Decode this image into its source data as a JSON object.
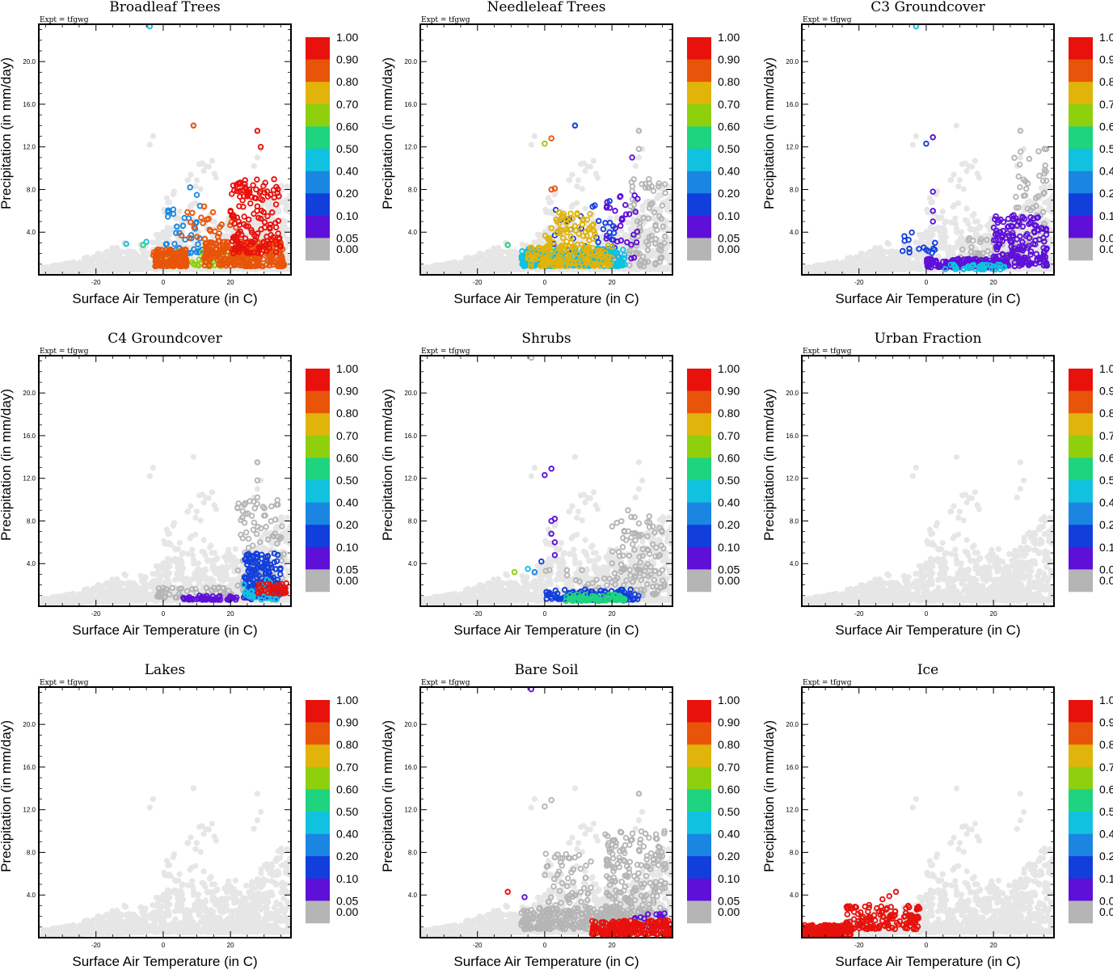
{
  "figure": {
    "expt_label": "Expt = tfgwg",
    "xlabel": "Surface Air Temperature (in C)",
    "ylabel": "Precipitation (in mm/day)",
    "xlim": [
      -37,
      38
    ],
    "ylim": [
      0,
      23.5
    ],
    "xticks": [
      "-20",
      "0",
      "20"
    ],
    "yticks": [
      "4.0",
      "8.0",
      "12.0",
      "16.0",
      "20.0"
    ],
    "colorbar": {
      "labels": [
        "1.00",
        "0.90",
        "0.80",
        "0.70",
        "0.60",
        "0.50",
        "0.40",
        "0.20",
        "0.10",
        "0.05",
        "0.00"
      ],
      "colors": [
        "#e8110c",
        "#e8540a",
        "#e0b40a",
        "#8fd00e",
        "#1ed47e",
        "#10c2e0",
        "#1a86e2",
        "#123fdc",
        "#5e10d8",
        "#b5b5b5"
      ]
    },
    "background_color": "#e6e6e6"
  },
  "chart_data": [
    {
      "type": "scatter",
      "title": "Broadleaf Trees",
      "xlabel": "Surface Air Temperature (in C)",
      "ylabel": "Precipitation (in mm/day)",
      "xlim": [
        -37,
        38
      ],
      "ylim": [
        0,
        23.5
      ],
      "clusters": [
        {
          "x": [
            -3,
            7
          ],
          "y": [
            0.8,
            2.4
          ],
          "n": 140,
          "value": 0.85
        },
        {
          "x": [
            12,
            36
          ],
          "y": [
            0.8,
            3.2
          ],
          "n": 260,
          "value": 0.85
        },
        {
          "x": [
            20,
            35
          ],
          "y": [
            2.0,
            9.0
          ],
          "n": 150,
          "value": 0.95
        },
        {
          "x": [
            -2,
            26
          ],
          "y": [
            0.8,
            2.2
          ],
          "n": 90,
          "value": 0.65
        },
        {
          "x": [
            0,
            12
          ],
          "y": [
            2.0,
            6.5
          ],
          "n": 35,
          "value": 0.2
        },
        {
          "x": [
            5,
            22
          ],
          "y": [
            3.0,
            6.5
          ],
          "n": 30,
          "value": 0.82
        }
      ],
      "points": [
        [
          -4,
          23.3,
          0.5
        ],
        [
          9,
          14.0,
          0.85
        ],
        [
          28,
          13.5,
          0.95
        ],
        [
          29,
          12.0,
          0.95
        ],
        [
          -11,
          2.9,
          0.4
        ],
        [
          -5,
          3.1,
          0.5
        ],
        [
          -6,
          2.8,
          0.6
        ],
        [
          8,
          8.2,
          0.2
        ],
        [
          10,
          7.5,
          0.2
        ]
      ]
    },
    {
      "type": "scatter",
      "title": "Needleleaf Trees",
      "xlabel": "Surface Air Temperature (in C)",
      "ylabel": "Precipitation (in mm/day)",
      "xlim": [
        -37,
        38
      ],
      "ylim": [
        0,
        23.5
      ],
      "clusters": [
        {
          "x": [
            -7,
            24
          ],
          "y": [
            0.8,
            2.5
          ],
          "n": 260,
          "value": 0.45
        },
        {
          "x": [
            -5,
            20
          ],
          "y": [
            0.8,
            2.8
          ],
          "n": 130,
          "value": 0.72
        },
        {
          "x": [
            0,
            15
          ],
          "y": [
            2.5,
            6.0
          ],
          "n": 70,
          "value": 0.78
        },
        {
          "x": [
            2,
            22
          ],
          "y": [
            2.0,
            7.0
          ],
          "n": 40,
          "value": 0.15
        },
        {
          "x": [
            18,
            28
          ],
          "y": [
            1.5,
            8.0
          ],
          "n": 35,
          "value": 0.05
        },
        {
          "x": [
            25,
            36
          ],
          "y": [
            0.8,
            9.0
          ],
          "n": 80,
          "value": 0
        }
      ],
      "points": [
        [
          0,
          12.3,
          0.7
        ],
        [
          2,
          12.8,
          0.85
        ],
        [
          9,
          14.0,
          0.15
        ],
        [
          28,
          13.5,
          0
        ],
        [
          28,
          11.8,
          0
        ],
        [
          26,
          11.0,
          0.05
        ],
        [
          -11,
          2.8,
          0.55
        ],
        [
          2,
          8.0,
          0.85
        ],
        [
          3,
          8.1,
          0.85
        ]
      ]
    },
    {
      "type": "scatter",
      "title": "C3 Groundcover",
      "xlabel": "Surface Air Temperature (in C)",
      "ylabel": "Precipitation (in mm/day)",
      "xlim": [
        -37,
        38
      ],
      "ylim": [
        0,
        23.5
      ],
      "clusters": [
        {
          "x": [
            0,
            24
          ],
          "y": [
            0.7,
            1.5
          ],
          "n": 150,
          "value": 0.05
        },
        {
          "x": [
            5,
            24
          ],
          "y": [
            0.5,
            1.0
          ],
          "n": 40,
          "value": 0.42
        },
        {
          "x": [
            20,
            36
          ],
          "y": [
            0.8,
            5.5
          ],
          "n": 180,
          "value": 0.05
        },
        {
          "x": [
            10,
            28
          ],
          "y": [
            0.8,
            3.5
          ],
          "n": 60,
          "value": 0
        },
        {
          "x": [
            25,
            36
          ],
          "y": [
            2.0,
            12.0
          ],
          "n": 60,
          "value": 0
        },
        {
          "x": [
            -8,
            3
          ],
          "y": [
            2.0,
            4.0
          ],
          "n": 15,
          "value": 0.12
        }
      ],
      "points": [
        [
          -3,
          23.3,
          0.45
        ],
        [
          0,
          12.3,
          0.1
        ],
        [
          2,
          12.9,
          0.05
        ],
        [
          28,
          13.5,
          0
        ],
        [
          2,
          7.8,
          0.05
        ],
        [
          2,
          6.0,
          0.05
        ],
        [
          2,
          5.0,
          0.05
        ],
        [
          26,
          5.6,
          0.05
        ]
      ]
    },
    {
      "type": "scatter",
      "title": "C4 Groundcover",
      "xlabel": "Surface Air Temperature (in C)",
      "ylabel": "Precipitation (in mm/day)",
      "xlim": [
        -37,
        38
      ],
      "ylim": [
        0,
        23.5
      ],
      "clusters": [
        {
          "x": [
            -2,
            22
          ],
          "y": [
            0.8,
            1.8
          ],
          "n": 60,
          "value": 0
        },
        {
          "x": [
            22,
            36
          ],
          "y": [
            1.5,
            10.0
          ],
          "n": 100,
          "value": 0
        },
        {
          "x": [
            24,
            35
          ],
          "y": [
            0.8,
            5.0
          ],
          "n": 160,
          "value": 0.1
        },
        {
          "x": [
            6,
            28
          ],
          "y": [
            0.6,
            1.0
          ],
          "n": 60,
          "value": 0.05
        },
        {
          "x": [
            28,
            37
          ],
          "y": [
            1.2,
            2.2
          ],
          "n": 40,
          "value": 0.95
        },
        {
          "x": [
            24,
            34
          ],
          "y": [
            0.6,
            2.5
          ],
          "n": 30,
          "value": 0.45
        }
      ],
      "points": [
        [
          28,
          13.5,
          0
        ],
        [
          28,
          11.8,
          0
        ],
        [
          28,
          10.2,
          0
        ],
        [
          30,
          8.5,
          0
        ]
      ]
    },
    {
      "type": "scatter",
      "title": "Shrubs",
      "xlabel": "Surface Air Temperature (in C)",
      "ylabel": "Precipitation (in mm/day)",
      "xlim": [
        -37,
        38
      ],
      "ylim": [
        0,
        23.5
      ],
      "clusters": [
        {
          "x": [
            0,
            28
          ],
          "y": [
            0.6,
            1.6
          ],
          "n": 120,
          "value": 0.1
        },
        {
          "x": [
            6,
            24
          ],
          "y": [
            0.5,
            1.1
          ],
          "n": 80,
          "value": 0.6
        },
        {
          "x": [
            20,
            36
          ],
          "y": [
            1.0,
            9.0
          ],
          "n": 110,
          "value": 0
        },
        {
          "x": [
            0,
            28
          ],
          "y": [
            1.5,
            3.5
          ],
          "n": 20,
          "value": 0
        }
      ],
      "points": [
        [
          -4,
          23.3,
          0
        ],
        [
          0,
          12.3,
          0.05
        ],
        [
          2,
          12.9,
          0.05
        ],
        [
          2,
          8.0,
          0.05
        ],
        [
          3,
          8.2,
          0.05
        ],
        [
          2,
          6.8,
          0.05
        ],
        [
          3,
          6.0,
          0.05
        ],
        [
          3,
          4.8,
          0.05
        ],
        [
          -1,
          4.2,
          0.1
        ],
        [
          -5,
          3.5,
          0.4
        ],
        [
          -9,
          3.2,
          0.7
        ],
        [
          -3,
          3.2,
          0.3
        ]
      ]
    },
    {
      "type": "scatter",
      "title": "Urban Fraction",
      "xlabel": "Surface Air Temperature (in C)",
      "ylabel": "Precipitation (in mm/day)",
      "xlim": [
        -37,
        38
      ],
      "ylim": [
        0,
        23.5
      ],
      "clusters": [],
      "points": []
    },
    {
      "type": "scatter",
      "title": "Lakes",
      "xlabel": "Surface Air Temperature (in C)",
      "ylabel": "Precipitation (in mm/day)",
      "xlim": [
        -37,
        38
      ],
      "ylim": [
        0,
        23.5
      ],
      "clusters": [],
      "points": []
    },
    {
      "type": "scatter",
      "title": "Bare Soil",
      "xlabel": "Surface Air Temperature (in C)",
      "ylabel": "Precipitation (in mm/day)",
      "xlim": [
        -37,
        38
      ],
      "ylim": [
        0,
        23.5
      ],
      "clusters": [
        {
          "x": [
            -7,
            24
          ],
          "y": [
            0.8,
            2.8
          ],
          "n": 260,
          "value": 0
        },
        {
          "x": [
            0,
            14
          ],
          "y": [
            2.0,
            8.0
          ],
          "n": 60,
          "value": 0
        },
        {
          "x": [
            18,
            36
          ],
          "y": [
            1.5,
            10.0
          ],
          "n": 220,
          "value": 0
        },
        {
          "x": [
            14,
            38
          ],
          "y": [
            0.3,
            1.6
          ],
          "n": 200,
          "value": 0.95
        },
        {
          "x": [
            26,
            38
          ],
          "y": [
            1.0,
            2.3
          ],
          "n": 20,
          "value": 0.05
        }
      ],
      "points": [
        [
          -4,
          23.3,
          0.05
        ],
        [
          0,
          12.3,
          0
        ],
        [
          2,
          12.9,
          0
        ],
        [
          28,
          13.5,
          0
        ],
        [
          -11,
          4.3,
          0.95
        ],
        [
          -6,
          3.8,
          0.05
        ],
        [
          15,
          0.8,
          0.6
        ]
      ]
    },
    {
      "type": "scatter",
      "title": "Ice",
      "xlabel": "Surface Air Temperature (in C)",
      "ylabel": "Precipitation (in mm/day)",
      "xlim": [
        -37,
        38
      ],
      "ylim": [
        0,
        23.5
      ],
      "clusters": [
        {
          "x": [
            -37,
            -22
          ],
          "y": [
            0.2,
            1.2
          ],
          "n": 180,
          "value": 0.95
        },
        {
          "x": [
            -24,
            -2
          ],
          "y": [
            0.8,
            3.2
          ],
          "n": 140,
          "value": 0.95
        }
      ],
      "points": [
        [
          -9,
          4.3,
          0.95
        ],
        [
          -11,
          3.9,
          0.95
        ],
        [
          -13,
          3.6,
          0.95
        ],
        [
          -5,
          2.0,
          0.95
        ],
        [
          -3,
          1.8,
          0.95
        ]
      ]
    }
  ]
}
